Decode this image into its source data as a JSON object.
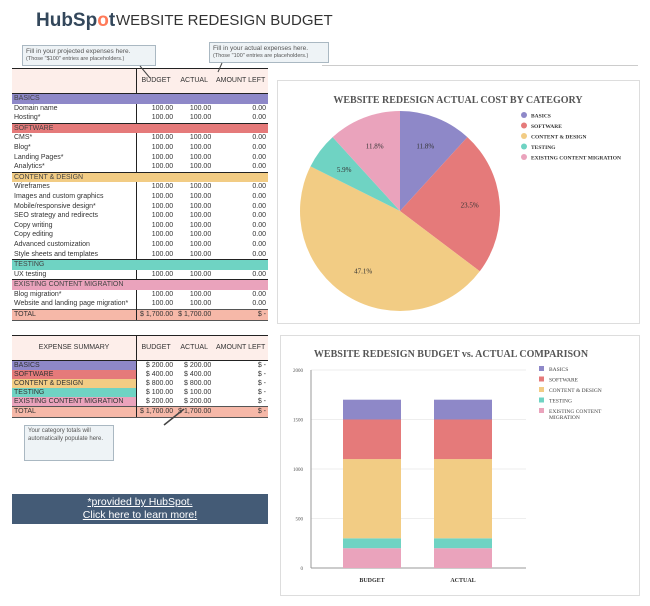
{
  "header": {
    "logo": "HubSpot",
    "title": "WEBSITE REDESIGN BUDGET"
  },
  "notes": {
    "projected": {
      "line1": "Fill in your projected expenses here.",
      "line2": "(Those \"$100\" entries are placeholders.)"
    },
    "actual": {
      "line1": "Fill in your actual expenses here.",
      "line2": "(Those \"100\" entries are placeholders.)"
    },
    "summary": "Your category totals will automatically populate here."
  },
  "colors": {
    "basics": "#8e88c8",
    "software": "#e57a7a",
    "content": "#f2cc84",
    "testing": "#6fd3c3",
    "migration": "#eaa3bc"
  },
  "budget_table": {
    "columns": [
      "BUDGET",
      "ACTUAL",
      "AMOUNT LEFT"
    ],
    "sections": [
      {
        "name": "BASICS",
        "key": "basics",
        "items": [
          [
            "Domain name",
            "100.00",
            "100.00",
            "0.00"
          ],
          [
            "Hosting*",
            "100.00",
            "100.00",
            "0.00"
          ]
        ]
      },
      {
        "name": "SOFTWARE",
        "key": "software",
        "items": [
          [
            "CMS*",
            "100.00",
            "100.00",
            "0.00"
          ],
          [
            "Blog*",
            "100.00",
            "100.00",
            "0.00"
          ],
          [
            "Landing Pages*",
            "100.00",
            "100.00",
            "0.00"
          ],
          [
            "Analytics*",
            "100.00",
            "100.00",
            "0.00"
          ]
        ]
      },
      {
        "name": "CONTENT & DESIGN",
        "key": "content",
        "items": [
          [
            "Wireframes",
            "100.00",
            "100.00",
            "0.00"
          ],
          [
            "Images and custom graphics",
            "100.00",
            "100.00",
            "0.00"
          ],
          [
            "Mobile/responsive design*",
            "100.00",
            "100.00",
            "0.00"
          ],
          [
            "SEO strategy and redirects",
            "100.00",
            "100.00",
            "0.00"
          ],
          [
            "Copy writing",
            "100.00",
            "100.00",
            "0.00"
          ],
          [
            "Copy editing",
            "100.00",
            "100.00",
            "0.00"
          ],
          [
            "Advanced customization",
            "100.00",
            "100.00",
            "0.00"
          ],
          [
            "Style sheets and templates",
            "100.00",
            "100.00",
            "0.00"
          ]
        ]
      },
      {
        "name": "TESTING",
        "key": "testing",
        "items": [
          [
            "UX testing",
            "100.00",
            "100.00",
            "0.00"
          ]
        ]
      },
      {
        "name": "EXISTING CONTENT MIGRATION",
        "key": "migration",
        "items": [
          [
            "Blog migration*",
            "100.00",
            "100.00",
            "0.00"
          ],
          [
            "Website and landing page migration*",
            "100.00",
            "100.00",
            "0.00"
          ]
        ]
      }
    ],
    "total": [
      "TOTAL",
      "$ 1,700.00",
      "$ 1,700.00",
      "$ -"
    ]
  },
  "summary_table": {
    "columns": [
      "EXPENSE SUMMARY",
      "BUDGET",
      "ACTUAL",
      "AMOUNT LEFT"
    ],
    "rows": [
      {
        "key": "basics",
        "cells": [
          "BASICS",
          "$ 200.00",
          "$ 200.00",
          "$ -"
        ]
      },
      {
        "key": "software",
        "cells": [
          "SOFTWARE",
          "$ 400.00",
          "$ 400.00",
          "$ -"
        ]
      },
      {
        "key": "content",
        "cells": [
          "CONTENT & DESIGN",
          "$ 800.00",
          "$ 800.00",
          "$ -"
        ]
      },
      {
        "key": "testing",
        "cells": [
          "TESTING",
          "$ 100.00",
          "$ 100.00",
          "$ -"
        ]
      },
      {
        "key": "migration",
        "cells": [
          "EXISTING CONTENT MIGRATION",
          "$ 200.00",
          "$ 200.00",
          "$ -"
        ]
      }
    ],
    "total": [
      "TOTAL",
      "$ 1,700.00",
      "$ 1,700.00",
      "$ -"
    ]
  },
  "cta": {
    "line1": "*provided by HubSpot.",
    "line2": "Click here to learn more!"
  },
  "chart_data": [
    {
      "type": "pie",
      "title": "WEBSITE REDESIGN ACTUAL COST BY CATEGORY",
      "legend": "right",
      "categories": [
        "BASICS",
        "SOFTWARE",
        "CONTENT & DESIGN",
        "TESTING",
        "EXISTING CONTENT MIGRATION"
      ],
      "values": [
        200,
        400,
        800,
        100,
        200
      ],
      "labels": [
        "11.8%",
        "23.5%",
        "47.1%",
        "5.9%",
        "11.8%"
      ]
    },
    {
      "type": "bar",
      "stacked": true,
      "title": "WEBSITE REDESIGN BUDGET vs. ACTUAL COMPARISON",
      "legend": "right",
      "categories": [
        "BUDGET",
        "ACTUAL"
      ],
      "ylim": [
        0,
        2000
      ],
      "yticks": [
        "0",
        "500",
        "1000",
        "1500",
        "2000"
      ],
      "grid": true,
      "series": [
        {
          "name": "EXISTING CONTENT MIGRATION",
          "values": [
            200,
            200
          ]
        },
        {
          "name": "TESTING",
          "values": [
            100,
            100
          ]
        },
        {
          "name": "CONTENT & DESIGN",
          "values": [
            800,
            800
          ]
        },
        {
          "name": "SOFTWARE",
          "values": [
            400,
            400
          ]
        },
        {
          "name": "BASICS",
          "values": [
            200,
            200
          ]
        }
      ]
    }
  ]
}
